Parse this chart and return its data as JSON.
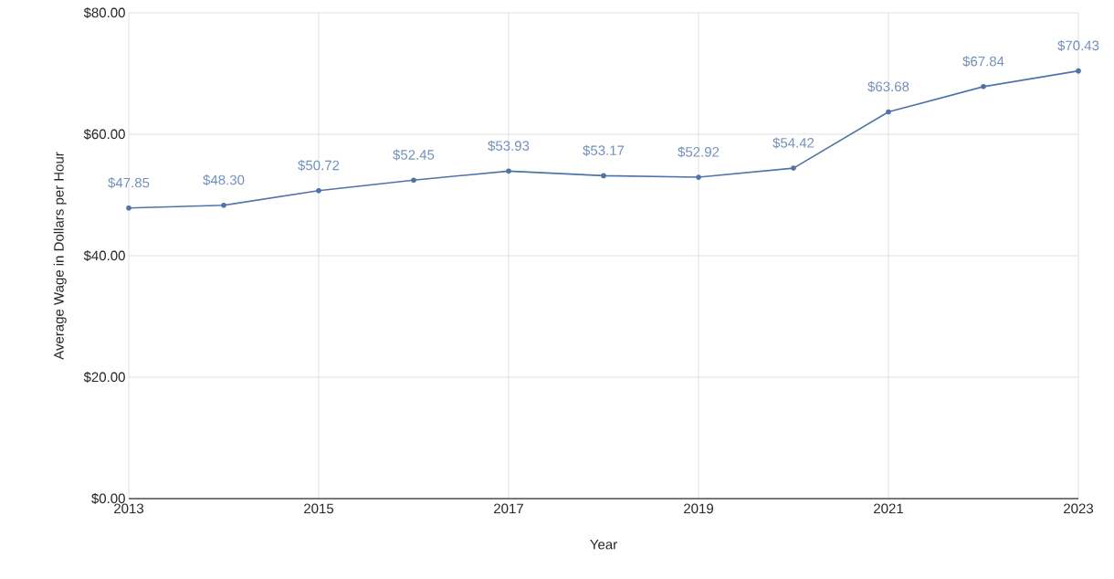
{
  "chart_data": {
    "type": "line",
    "xlabel": "Year",
    "ylabel": "Average Wage in Dollars per Hour",
    "x": [
      2013,
      2014,
      2015,
      2016,
      2017,
      2018,
      2019,
      2020,
      2021,
      2022,
      2023
    ],
    "series": [
      {
        "color": "#4f74a8",
        "values": [
          47.85,
          48.3,
          50.72,
          52.45,
          53.93,
          53.17,
          52.92,
          54.42,
          63.68,
          67.84,
          70.43
        ],
        "value_labels": [
          "$47.85",
          "$48.30",
          "$50.72",
          "$52.45",
          "$53.93",
          "$53.17",
          "$52.92",
          "$54.42",
          "$63.68",
          "$67.84",
          "$70.43"
        ]
      }
    ],
    "xlim": [
      2013,
      2023
    ],
    "xticks": [
      2013,
      2015,
      2017,
      2019,
      2021,
      2023
    ],
    "ylim": [
      0,
      80
    ],
    "yticks": [
      {
        "value": 0,
        "label": "$0.00"
      },
      {
        "value": 20,
        "label": "$20.00"
      },
      {
        "value": 40,
        "label": "$40.00"
      },
      {
        "value": 60,
        "label": "$60.00"
      },
      {
        "value": 80,
        "label": "$80.00"
      }
    ],
    "grid": true,
    "marker": "circle",
    "line_style": "solid"
  }
}
